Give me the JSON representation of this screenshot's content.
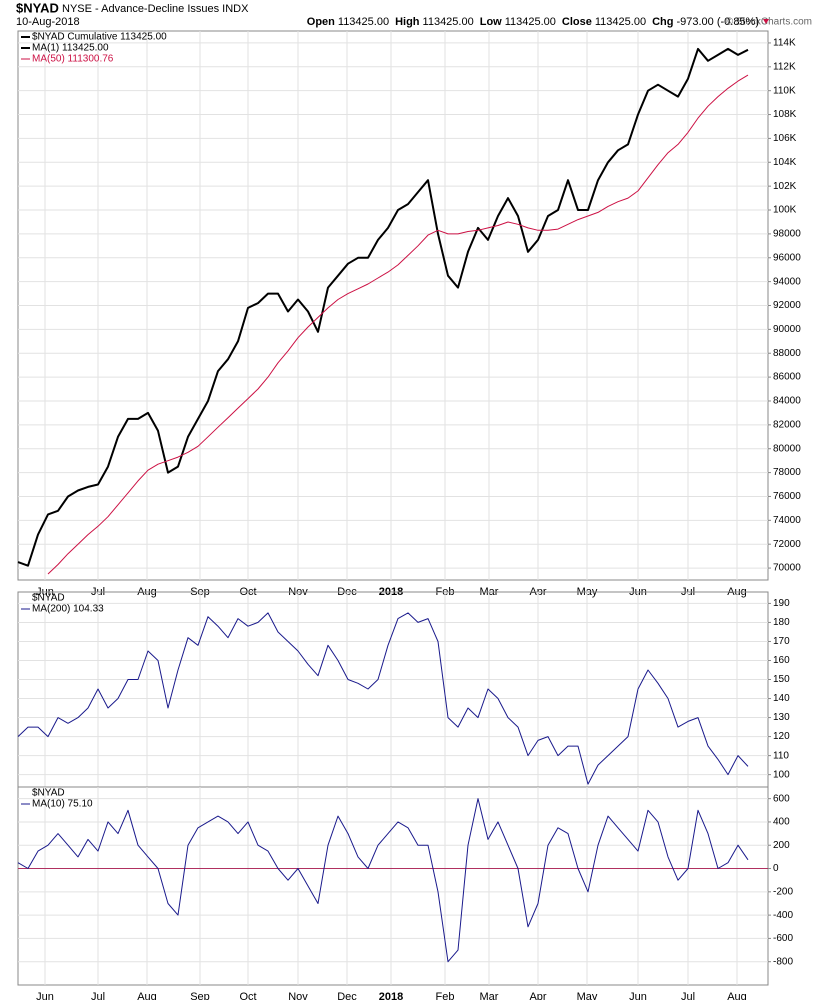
{
  "header": {
    "symbol": "$NYAD",
    "name": "NYSE - Advance-Decline Issues INDX",
    "date": "10-Aug-2018",
    "quote": [
      {
        "label": "Open",
        "value": "113425.00"
      },
      {
        "label": "High",
        "value": "113425.00"
      },
      {
        "label": "Low",
        "value": "113425.00"
      },
      {
        "label": "Close",
        "value": "113425.00"
      },
      {
        "label": "Chg",
        "value": "-973.00 (-0.85%)"
      }
    ],
    "copyright": "© StockCharts.com"
  },
  "chart_data": [
    {
      "type": "line",
      "label": "$NYAD Cumulative 113425.00",
      "xlim": [
        0,
        75
      ],
      "ylim": [
        69000,
        115000
      ],
      "yticks": [
        70000,
        72000,
        74000,
        76000,
        78000,
        80000,
        82000,
        84000,
        86000,
        88000,
        90000,
        92000,
        94000,
        96000,
        98000,
        {
          "value": 100000,
          "label": "100K"
        },
        {
          "value": 102000,
          "label": "102K"
        },
        {
          "value": 104000,
          "label": "104K"
        },
        {
          "value": 106000,
          "label": "106K"
        },
        {
          "value": 108000,
          "label": "108K"
        },
        {
          "value": 110000,
          "label": "110K"
        },
        {
          "value": 112000,
          "label": "112K"
        },
        {
          "value": 114000,
          "label": "114K"
        }
      ],
      "xticks": [
        {
          "value": 2.7,
          "label": "Jun"
        },
        {
          "value": 8,
          "label": "Jul"
        },
        {
          "value": 12.9,
          "label": "Aug"
        },
        {
          "value": 18.2,
          "label": "Sep"
        },
        {
          "value": 23,
          "label": "Oct"
        },
        {
          "value": 28,
          "label": "Nov"
        },
        {
          "value": 32.9,
          "label": "Dec"
        },
        {
          "value": 37.3,
          "label": "2018"
        },
        {
          "value": 42.7,
          "label": "Feb"
        },
        {
          "value": 47.1,
          "label": "Mar"
        },
        {
          "value": 52,
          "label": "Apr"
        },
        {
          "value": 56.9,
          "label": "May"
        },
        {
          "value": 62,
          "label": "Jun"
        },
        {
          "value": 67,
          "label": "Jul"
        },
        {
          "value": 71.9,
          "label": "Aug"
        }
      ],
      "grid": true,
      "show_xlabels": true,
      "series": [
        {
          "name": "MA(1) 113425.00",
          "color": "#000000",
          "width": 2,
          "values": [
            70500,
            70200,
            72800,
            74500,
            74800,
            76000,
            76500,
            76800,
            77000,
            78500,
            81000,
            82500,
            82500,
            83000,
            81500,
            78000,
            78500,
            81000,
            82500,
            84000,
            86500,
            87500,
            89000,
            91800,
            92200,
            93000,
            93000,
            91500,
            92500,
            91500,
            89800,
            93500,
            94500,
            95500,
            96000,
            96000,
            97500,
            98500,
            100000,
            100500,
            101500,
            102500,
            98000,
            94500,
            93500,
            96500,
            98500,
            97500,
            99500,
            101000,
            99500,
            96500,
            97500,
            99500,
            100000,
            102500,
            100000,
            100000,
            102500,
            104000,
            105000,
            105500,
            108000,
            110000,
            110500,
            110000,
            109500,
            111000,
            113500,
            112500,
            113000,
            113500,
            113000,
            113425
          ]
        },
        {
          "name": "MA(50) 111300.76",
          "color": "#cc1144",
          "width": 1,
          "values": [
            null,
            null,
            null,
            69500,
            70300,
            71200,
            72000,
            72800,
            73500,
            74300,
            75300,
            76300,
            77300,
            78200,
            78700,
            79000,
            79300,
            79700,
            80200,
            81000,
            81800,
            82600,
            83400,
            84200,
            85000,
            86000,
            87200,
            88200,
            89300,
            90200,
            91000,
            91800,
            92500,
            93000,
            93400,
            93800,
            94300,
            94800,
            95400,
            96200,
            97000,
            97900,
            98300,
            98000,
            98000,
            98200,
            98300,
            98500,
            98700,
            99000,
            98800,
            98500,
            98300,
            98300,
            98400,
            98800,
            99200,
            99500,
            99800,
            100300,
            100700,
            101000,
            101600,
            102700,
            103800,
            104800,
            105500,
            106500,
            107700,
            108700,
            109500,
            110200,
            110800,
            111300.76
          ]
        }
      ]
    },
    {
      "type": "line",
      "label": "$NYAD",
      "xlim": [
        0,
        75
      ],
      "ylim": [
        93.5,
        196
      ],
      "yticks": [
        100,
        110,
        120,
        130,
        140,
        150,
        160,
        170,
        180,
        190
      ],
      "xticks": [
        {
          "value": 2.7,
          "label": "Jun"
        },
        {
          "value": 8,
          "label": "Jul"
        },
        {
          "value": 12.9,
          "label": "Aug"
        },
        {
          "value": 18.2,
          "label": "Sep"
        },
        {
          "value": 23,
          "label": "Oct"
        },
        {
          "value": 28,
          "label": "Nov"
        },
        {
          "value": 32.9,
          "label": "Dec"
        },
        {
          "value": 37.3,
          "label": "2018"
        },
        {
          "value": 42.7,
          "label": "Feb"
        },
        {
          "value": 47.1,
          "label": "Mar"
        },
        {
          "value": 52,
          "label": "Apr"
        },
        {
          "value": 56.9,
          "label": "May"
        },
        {
          "value": 62,
          "label": "Jun"
        },
        {
          "value": 67,
          "label": "Jul"
        },
        {
          "value": 71.9,
          "label": "Aug"
        }
      ],
      "grid": true,
      "show_xlabels": false,
      "series": [
        {
          "name": "MA(200) 104.33",
          "color": "#1a1a8c",
          "width": 1,
          "values": [
            120,
            125,
            125,
            120,
            130,
            127,
            130,
            135,
            145,
            135,
            140,
            150,
            150,
            165,
            160,
            135,
            155,
            172,
            168,
            183,
            178,
            172,
            182,
            178,
            180,
            185,
            175,
            170,
            165,
            158,
            152,
            168,
            160,
            150,
            148,
            145,
            150,
            168,
            182,
            185,
            180,
            182,
            170,
            130,
            125,
            135,
            130,
            145,
            140,
            130,
            125,
            110,
            118,
            120,
            110,
            115,
            115,
            95,
            105,
            110,
            115,
            120,
            145,
            155,
            148,
            140,
            125,
            128,
            130,
            115,
            108,
            100,
            110,
            104.33
          ]
        }
      ]
    },
    {
      "type": "line",
      "label": "$NYAD",
      "xlim": [
        0,
        75
      ],
      "ylim": [
        -1000,
        700
      ],
      "zero_line_color": "#b03060",
      "yticks": [
        -800,
        -600,
        -400,
        -200,
        0,
        200,
        400,
        600
      ],
      "xticks": [
        {
          "value": 2.7,
          "label": "Jun"
        },
        {
          "value": 8,
          "label": "Jul"
        },
        {
          "value": 12.9,
          "label": "Aug"
        },
        {
          "value": 18.2,
          "label": "Sep"
        },
        {
          "value": 23,
          "label": "Oct"
        },
        {
          "value": 28,
          "label": "Nov"
        },
        {
          "value": 32.9,
          "label": "Dec"
        },
        {
          "value": 37.3,
          "label": "2018"
        },
        {
          "value": 42.7,
          "label": "Feb"
        },
        {
          "value": 47.1,
          "label": "Mar"
        },
        {
          "value": 52,
          "label": "Apr"
        },
        {
          "value": 56.9,
          "label": "May"
        },
        {
          "value": 62,
          "label": "Jun"
        },
        {
          "value": 67,
          "label": "Jul"
        },
        {
          "value": 71.9,
          "label": "Aug"
        }
      ],
      "grid": true,
      "show_xlabels": true,
      "series": [
        {
          "name": "MA(10) 75.10",
          "color": "#1a1a8c",
          "width": 1,
          "values": [
            50,
            0,
            150,
            200,
            300,
            200,
            100,
            250,
            150,
            400,
            300,
            500,
            200,
            100,
            0,
            -300,
            -400,
            200,
            350,
            400,
            450,
            400,
            300,
            400,
            200,
            150,
            0,
            -100,
            0,
            -150,
            -300,
            200,
            450,
            300,
            100,
            0,
            200,
            300,
            400,
            350,
            200,
            200,
            -200,
            -800,
            -700,
            200,
            600,
            250,
            400,
            200,
            0,
            -500,
            -300,
            200,
            350,
            300,
            0,
            -200,
            200,
            450,
            350,
            250,
            150,
            500,
            400,
            100,
            -100,
            0,
            500,
            300,
            0,
            50,
            200,
            75.1
          ]
        }
      ]
    }
  ]
}
